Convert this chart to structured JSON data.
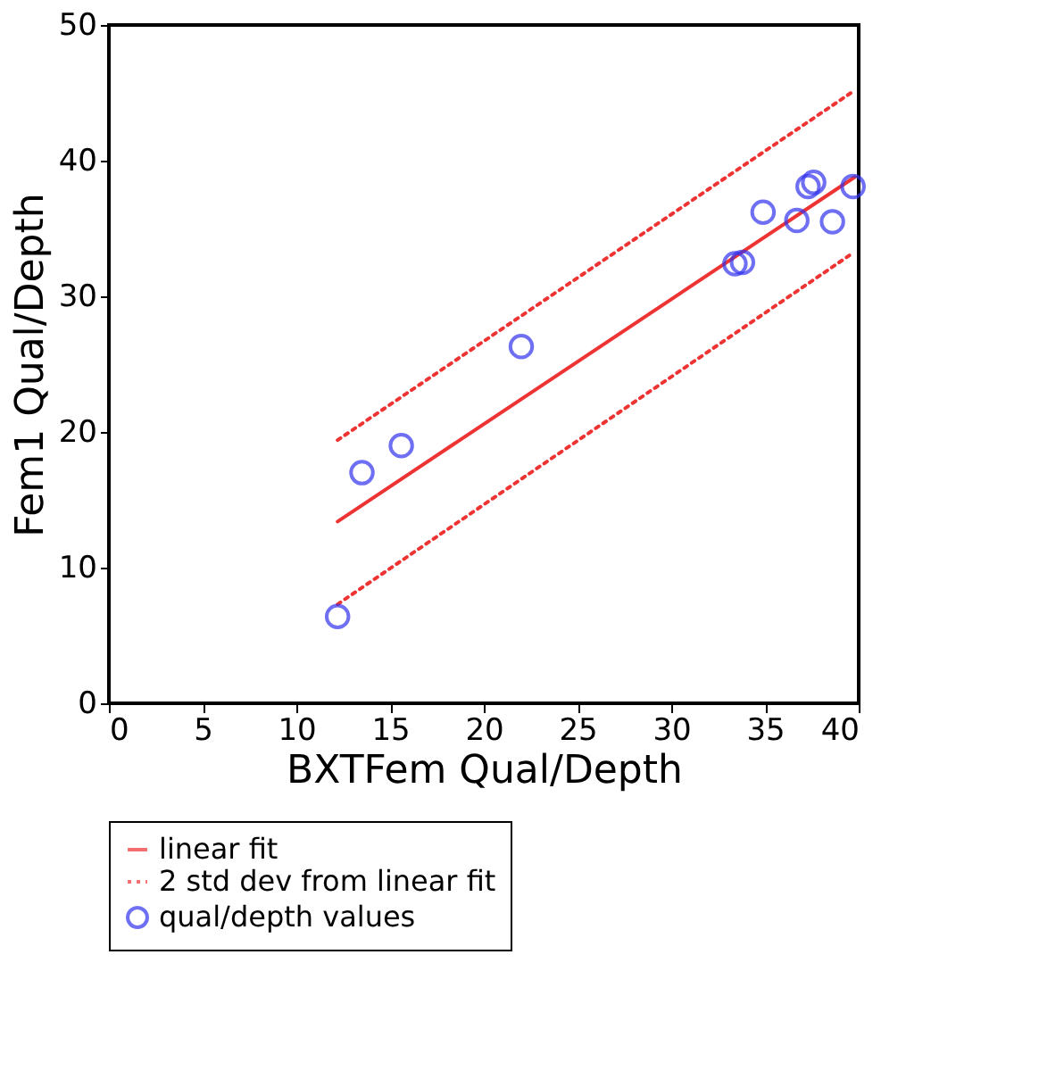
{
  "chart_data": {
    "type": "scatter",
    "xlabel": "BXTFem  Qual/Depth",
    "ylabel": "Fem1  Qual/Depth",
    "xlim": [
      0,
      40
    ],
    "ylim": [
      0,
      50
    ],
    "xticks": [
      0,
      5,
      10,
      15,
      20,
      25,
      30,
      35,
      40
    ],
    "yticks": [
      0,
      10,
      20,
      30,
      40,
      50
    ],
    "grid": false,
    "legend": "bottom",
    "series": [
      {
        "name": "linear fit",
        "type": "line",
        "line_style": "solid",
        "marker": "none",
        "color": "#ee3333",
        "x": [
          12.2,
          39.8
        ],
        "values": [
          13.4,
          38.8
        ]
      },
      {
        "name": "2 std dev from linear fit",
        "type": "line",
        "line_style": "dotted",
        "marker": "none",
        "color": "#ee3333",
        "x": [
          12.2,
          39.7
        ],
        "values": [
          19.4,
          45.1
        ]
      },
      {
        "type": "line",
        "line_style": "dotted",
        "marker": "none",
        "color": "#ee3333",
        "x": [
          12.2,
          39.7
        ],
        "values": [
          7.3,
          33.2
        ]
      },
      {
        "name": "qual/depth values",
        "marker": "circle",
        "color": "#3333ee",
        "x": [
          12.2,
          13.5,
          15.6,
          22.0,
          33.4,
          33.8,
          34.9,
          36.7,
          37.3,
          37.6,
          38.6,
          39.7
        ],
        "values": [
          6.4,
          17.0,
          19.0,
          26.3,
          32.4,
          32.5,
          36.2,
          35.6,
          38.1,
          38.4,
          35.5,
          38.1
        ]
      }
    ]
  }
}
